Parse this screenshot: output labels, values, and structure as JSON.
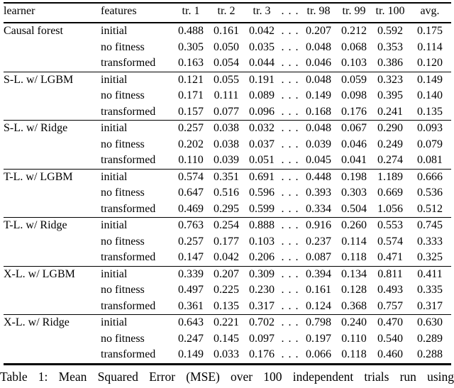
{
  "table": {
    "columns": [
      "learner",
      "features",
      "tr. 1",
      "tr. 2",
      "tr. 3",
      ". . .",
      "tr. 98",
      "tr. 99",
      "tr. 100",
      "avg."
    ],
    "ellipsis": ". . .",
    "groups": [
      {
        "learner": "Causal forest",
        "rows": [
          {
            "features": "initial",
            "trials": [
              "0.488",
              "0.161",
              "0.042",
              "0.207",
              "0.212",
              "0.592"
            ],
            "avg": "0.175"
          },
          {
            "features": "no fitness",
            "trials": [
              "0.305",
              "0.050",
              "0.035",
              "0.048",
              "0.068",
              "0.353"
            ],
            "avg": "0.114"
          },
          {
            "features": "transformed",
            "trials": [
              "0.163",
              "0.054",
              "0.044",
              "0.046",
              "0.103",
              "0.386"
            ],
            "avg": "0.120"
          }
        ]
      },
      {
        "learner": "S-L. w/ LGBM",
        "rows": [
          {
            "features": "initial",
            "trials": [
              "0.121",
              "0.055",
              "0.191",
              "0.048",
              "0.059",
              "0.323"
            ],
            "avg": "0.149"
          },
          {
            "features": "no fitness",
            "trials": [
              "0.171",
              "0.111",
              "0.089",
              "0.149",
              "0.098",
              "0.395"
            ],
            "avg": "0.140"
          },
          {
            "features": "transformed",
            "trials": [
              "0.157",
              "0.077",
              "0.096",
              "0.168",
              "0.176",
              "0.241"
            ],
            "avg": "0.135"
          }
        ]
      },
      {
        "learner": "S-L. w/ Ridge",
        "rows": [
          {
            "features": "initial",
            "trials": [
              "0.257",
              "0.038",
              "0.032",
              "0.048",
              "0.067",
              "0.290"
            ],
            "avg": "0.093"
          },
          {
            "features": "no fitness",
            "trials": [
              "0.202",
              "0.038",
              "0.037",
              "0.039",
              "0.046",
              "0.249"
            ],
            "avg": "0.079"
          },
          {
            "features": "transformed",
            "trials": [
              "0.110",
              "0.039",
              "0.051",
              "0.045",
              "0.041",
              "0.274"
            ],
            "avg": "0.081"
          }
        ]
      },
      {
        "learner": "T-L. w/ LGBM",
        "rows": [
          {
            "features": "initial",
            "trials": [
              "0.574",
              "0.351",
              "0.691",
              "0.448",
              "0.198",
              "1.189"
            ],
            "avg": "0.666"
          },
          {
            "features": "no fitness",
            "trials": [
              "0.647",
              "0.516",
              "0.596",
              "0.393",
              "0.303",
              "0.669"
            ],
            "avg": "0.536"
          },
          {
            "features": "transformed",
            "trials": [
              "0.469",
              "0.295",
              "0.599",
              "0.334",
              "0.504",
              "1.056"
            ],
            "avg": "0.512"
          }
        ]
      },
      {
        "learner": "T-L. w/ Ridge",
        "rows": [
          {
            "features": "initial",
            "trials": [
              "0.763",
              "0.254",
              "0.888",
              "0.916",
              "0.260",
              "0.553"
            ],
            "avg": "0.745"
          },
          {
            "features": "no fitness",
            "trials": [
              "0.257",
              "0.177",
              "0.103",
              "0.237",
              "0.114",
              "0.574"
            ],
            "avg": "0.333"
          },
          {
            "features": "transformed",
            "trials": [
              "0.147",
              "0.042",
              "0.206",
              "0.087",
              "0.118",
              "0.471"
            ],
            "avg": "0.325"
          }
        ]
      },
      {
        "learner": "X-L. w/ LGBM",
        "rows": [
          {
            "features": "initial",
            "trials": [
              "0.339",
              "0.207",
              "0.309",
              "0.394",
              "0.134",
              "0.811"
            ],
            "avg": "0.411"
          },
          {
            "features": "no fitness",
            "trials": [
              "0.497",
              "0.225",
              "0.230",
              "0.161",
              "0.128",
              "0.493"
            ],
            "avg": "0.335"
          },
          {
            "features": "transformed",
            "trials": [
              "0.361",
              "0.135",
              "0.317",
              "0.124",
              "0.368",
              "0.757"
            ],
            "avg": "0.317"
          }
        ]
      },
      {
        "learner": "X-L. w/ Ridge",
        "rows": [
          {
            "features": "initial",
            "trials": [
              "0.643",
              "0.221",
              "0.702",
              "0.798",
              "0.240",
              "0.470"
            ],
            "avg": "0.630"
          },
          {
            "features": "no fitness",
            "trials": [
              "0.247",
              "0.145",
              "0.097",
              "0.197",
              "0.110",
              "0.540"
            ],
            "avg": "0.289"
          },
          {
            "features": "transformed",
            "trials": [
              "0.149",
              "0.033",
              "0.176",
              "0.066",
              "0.118",
              "0.460"
            ],
            "avg": "0.288"
          }
        ]
      }
    ]
  },
  "caption": {
    "text": "Table 1: Mean Squared Error (MSE) over 100 independent trials run using"
  }
}
